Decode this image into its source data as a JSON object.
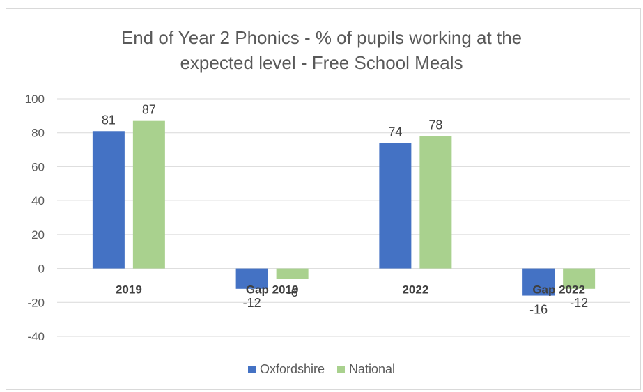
{
  "chart_data": {
    "type": "bar",
    "title_line1": "End of Year 2 Phonics - % of pupils working at the",
    "title_line2": "expected level - Free School Meals",
    "categories": [
      "2019",
      "Gap 2019",
      "2022",
      "Gap 2022"
    ],
    "series": [
      {
        "name": "Oxfordshire",
        "color": "#4472c4",
        "values": [
          81,
          -12,
          74,
          -16
        ]
      },
      {
        "name": "National",
        "color": "#a9d18e",
        "values": [
          87,
          -6,
          78,
          -12
        ]
      }
    ],
    "ylim": [
      -40,
      100
    ],
    "yticks": [
      100,
      80,
      60,
      40,
      20,
      0,
      -20,
      -40
    ],
    "grid": true,
    "legend_position": "bottom"
  }
}
